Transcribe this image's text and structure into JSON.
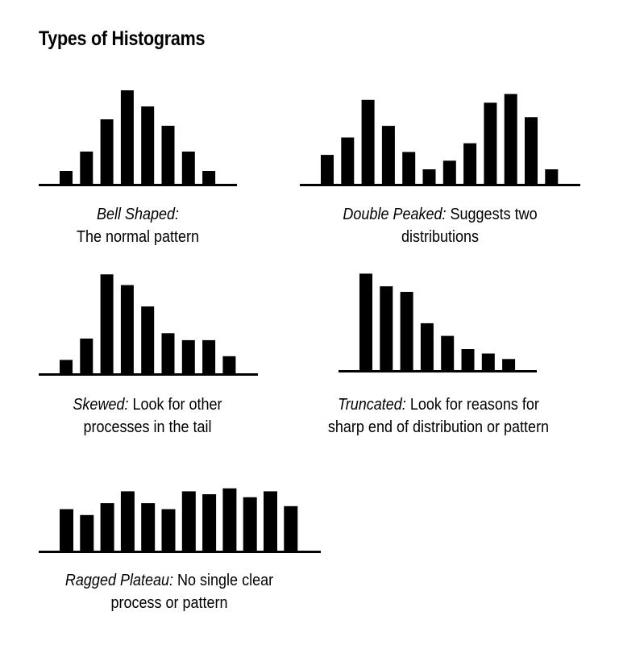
{
  "page": {
    "title": "Types of Histograms"
  },
  "colors": {
    "bar": "#000000",
    "axis": "#000000",
    "background": "#ffffff"
  },
  "chart_data": [
    {
      "id": "bell",
      "type": "bar",
      "title": "Bell Shaped:",
      "description_lines": [
        "The normal pattern"
      ],
      "values": [
        2,
        5,
        10,
        14.5,
        12,
        9,
        5,
        2
      ],
      "ylim": [
        0,
        15
      ]
    },
    {
      "id": "double",
      "type": "bar",
      "title": "Double Peaked:",
      "description_lines": [
        "Suggests two",
        "distributions"
      ],
      "values": [
        5,
        8,
        14.5,
        10,
        5.5,
        2.5,
        4,
        7,
        14,
        15.5,
        11.5,
        2.5
      ],
      "ylim": [
        0,
        16
      ]
    },
    {
      "id": "skewed",
      "type": "bar",
      "title": "Skewed:",
      "description_lines": [
        "Look for other",
        "processes in the tail"
      ],
      "values": [
        2.5,
        6.5,
        18.5,
        16.5,
        12.5,
        7.5,
        6.2,
        6.2,
        3.2
      ],
      "ylim": [
        0,
        19
      ]
    },
    {
      "id": "truncated",
      "type": "bar",
      "title": "Truncated:",
      "description_lines": [
        "Look for reasons for",
        "sharp end of distribution or pattern"
      ],
      "values": [
        17.5,
        15.2,
        14.2,
        8.5,
        6.2,
        3.8,
        3.0,
        2.0
      ],
      "ylim": [
        0,
        18
      ]
    },
    {
      "id": "plateau",
      "type": "bar",
      "title": "Ragged Plateau:",
      "description_lines": [
        "No single clear",
        "process or pattern"
      ],
      "values": [
        7,
        6,
        8,
        10,
        8,
        7,
        10,
        9.5,
        10.5,
        9,
        10,
        7.5
      ],
      "ylim": [
        0,
        11
      ]
    }
  ]
}
